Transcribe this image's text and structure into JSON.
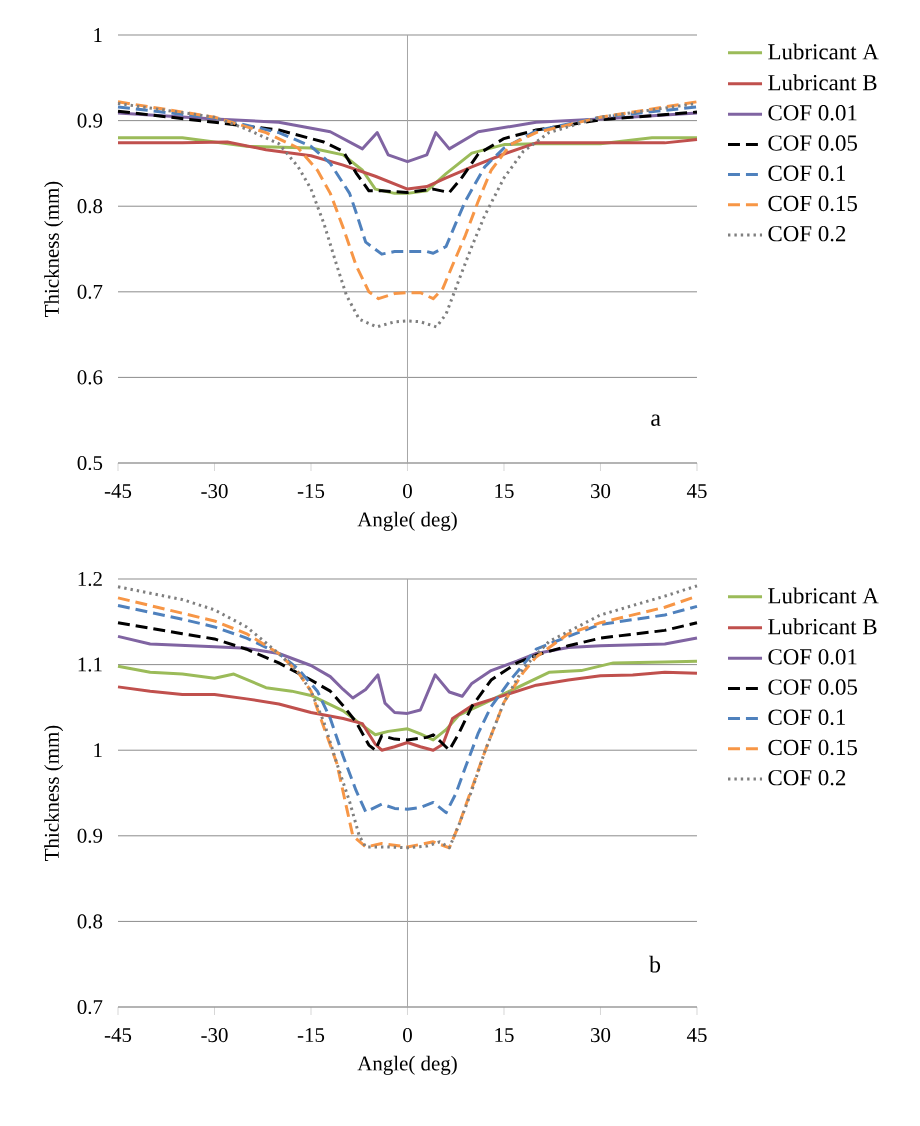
{
  "chart_data": [
    {
      "type": "line",
      "xlabel": "Angle( deg)",
      "ylabel": "Thickness (mm)",
      "annotations": [
        "a"
      ],
      "xlim": [
        -45,
        45
      ],
      "xticks": [
        -45,
        -30,
        -15,
        0,
        15,
        30,
        45
      ],
      "ylim": [
        0.5,
        1
      ],
      "yticks": [
        0.5,
        0.6,
        0.7,
        0.8,
        0.9,
        1
      ],
      "grid": "y",
      "legend": "right",
      "ref_lines": [
        {
          "axis": "x",
          "value": 0,
          "color": "#a6a6a6"
        }
      ],
      "series": [
        {
          "name": "Lubricant A",
          "color": "#9bbb59",
          "line_style": "solid",
          "x": [
            -45,
            -35,
            -25,
            -15,
            -10,
            -7,
            -5,
            -2,
            0,
            3,
            6,
            8,
            10,
            15,
            20,
            30,
            38,
            45
          ],
          "values": [
            0.88,
            0.88,
            0.87,
            0.868,
            0.86,
            0.842,
            0.82,
            0.815,
            0.815,
            0.818,
            0.838,
            0.85,
            0.862,
            0.872,
            0.873,
            0.873,
            0.88,
            0.88
          ]
        },
        {
          "name": "Lubricant B",
          "color": "#c0504d",
          "line_style": "solid",
          "x": [
            -45,
            -35,
            -28,
            -22,
            -15,
            -10,
            -5,
            0,
            3,
            6,
            10,
            15,
            20,
            30,
            40,
            45
          ],
          "values": [
            0.874,
            0.874,
            0.875,
            0.866,
            0.859,
            0.848,
            0.835,
            0.82,
            0.823,
            0.833,
            0.846,
            0.861,
            0.874,
            0.874,
            0.874,
            0.878
          ]
        },
        {
          "name": "COF 0.01",
          "color": "#8064a2",
          "line_style": "solid",
          "x": [
            -45,
            -30,
            -20,
            -12,
            -7,
            -4.7,
            -3,
            0,
            3,
            4.4,
            6.5,
            11,
            20,
            30,
            45
          ],
          "values": [
            0.909,
            0.902,
            0.898,
            0.887,
            0.867,
            0.886,
            0.86,
            0.852,
            0.86,
            0.886,
            0.867,
            0.887,
            0.898,
            0.902,
            0.909
          ]
        },
        {
          "name": "COF 0.05",
          "color": "#000000",
          "line_style": "dashed",
          "x": [
            -45,
            -30,
            -20,
            -13,
            -10,
            -8,
            -6,
            -4,
            0,
            4,
            6.5,
            8.5,
            11,
            15,
            20,
            30,
            45
          ],
          "values": [
            0.911,
            0.898,
            0.889,
            0.875,
            0.864,
            0.839,
            0.818,
            0.818,
            0.816,
            0.82,
            0.816,
            0.834,
            0.861,
            0.879,
            0.889,
            0.901,
            0.91
          ]
        },
        {
          "name": "COF 0.1",
          "color": "#4f81bd",
          "line_style": "dashed",
          "x": [
            -45,
            -30,
            -20,
            -15,
            -12,
            -9,
            -8,
            -6.5,
            -4,
            -2,
            0,
            3,
            4,
            6,
            7.5,
            9,
            12,
            15,
            20,
            30,
            45
          ],
          "values": [
            0.916,
            0.903,
            0.886,
            0.87,
            0.85,
            0.815,
            0.793,
            0.758,
            0.744,
            0.747,
            0.747,
            0.747,
            0.745,
            0.753,
            0.78,
            0.806,
            0.846,
            0.868,
            0.888,
            0.904,
            0.916
          ]
        },
        {
          "name": "COF 0.15",
          "color": "#f79646",
          "line_style": "dashed",
          "x": [
            -45,
            -30,
            -22,
            -17,
            -14,
            -12,
            -10,
            -8,
            -6,
            -4.5,
            -2,
            0,
            2,
            4,
            5.5,
            7,
            9,
            11,
            13,
            16,
            20,
            30,
            45
          ],
          "values": [
            0.922,
            0.904,
            0.886,
            0.868,
            0.842,
            0.815,
            0.775,
            0.731,
            0.7,
            0.692,
            0.698,
            0.699,
            0.699,
            0.692,
            0.704,
            0.731,
            0.766,
            0.806,
            0.842,
            0.872,
            0.886,
            0.904,
            0.922
          ]
        },
        {
          "name": "COF 0.2",
          "color": "#7f7f7f",
          "line_style": "dotted",
          "x": [
            -45,
            -30,
            -25,
            -20,
            -17,
            -15,
            -13,
            -11,
            -9.5,
            -7.5,
            -4.8,
            -2,
            0,
            2,
            4.5,
            6,
            8,
            10,
            12,
            15,
            18,
            22,
            30,
            45
          ],
          "values": [
            0.92,
            0.904,
            0.89,
            0.873,
            0.846,
            0.82,
            0.78,
            0.731,
            0.696,
            0.668,
            0.659,
            0.665,
            0.666,
            0.665,
            0.659,
            0.674,
            0.714,
            0.753,
            0.789,
            0.833,
            0.864,
            0.886,
            0.904,
            0.92
          ]
        }
      ]
    },
    {
      "type": "line",
      "xlabel": "Angle( deg)",
      "ylabel": "Thickness (mm)",
      "annotations": [
        "b"
      ],
      "xlim": [
        -45,
        45
      ],
      "xticks": [
        -45,
        -30,
        -15,
        0,
        15,
        30,
        45
      ],
      "ylim": [
        0.7,
        1.2
      ],
      "yticks": [
        0.7,
        0.8,
        0.9,
        1,
        1.1,
        1.2
      ],
      "grid": "y",
      "legend": "right",
      "ref_lines": [
        {
          "axis": "x",
          "value": 0,
          "color": "#a6a6a6"
        }
      ],
      "series": [
        {
          "name": "Lubricant A",
          "color": "#9bbb59",
          "line_style": "solid",
          "x": [
            -45,
            -40,
            -35,
            -30,
            -27,
            -22,
            -18,
            -15,
            -10,
            -7,
            -5,
            -3,
            0,
            2,
            4,
            6,
            8,
            12,
            17,
            22,
            27,
            32,
            40,
            45
          ],
          "values": [
            1.098,
            1.091,
            1.089,
            1.084,
            1.089,
            1.073,
            1.069,
            1.064,
            1.046,
            1.029,
            1.018,
            1.022,
            1.025,
            1.019,
            1.012,
            1.024,
            1.041,
            1.055,
            1.073,
            1.091,
            1.093,
            1.102,
            1.103,
            1.104
          ]
        },
        {
          "name": "Lubricant B",
          "color": "#c0504d",
          "line_style": "solid",
          "x": [
            -45,
            -40,
            -35,
            -30,
            -25,
            -20,
            -15,
            -10,
            -7,
            -5,
            -4,
            -2,
            0,
            2,
            4,
            5.5,
            7,
            10,
            15,
            20,
            25,
            30,
            35,
            40,
            45
          ],
          "values": [
            1.074,
            1.069,
            1.065,
            1.065,
            1.06,
            1.054,
            1.044,
            1.037,
            1.031,
            1.007,
            1,
            1.004,
            1.009,
            1.004,
            1,
            1.007,
            1.037,
            1.052,
            1.064,
            1.076,
            1.082,
            1.087,
            1.088,
            1.091,
            1.09
          ]
        },
        {
          "name": "COF 0.01",
          "color": "#8064a2",
          "line_style": "solid",
          "x": [
            -45,
            -40,
            -30,
            -25,
            -20,
            -15,
            -12,
            -10,
            -8.5,
            -6.5,
            -4.6,
            -3.5,
            -2,
            0,
            2,
            4.3,
            6.5,
            8.5,
            10,
            13,
            17,
            20,
            25,
            30,
            40,
            45
          ],
          "values": [
            1.133,
            1.124,
            1.121,
            1.119,
            1.113,
            1.099,
            1.086,
            1.071,
            1.061,
            1.071,
            1.088,
            1.055,
            1.044,
            1.043,
            1.047,
            1.088,
            1.068,
            1.063,
            1.078,
            1.093,
            1.104,
            1.113,
            1.12,
            1.122,
            1.124,
            1.131
          ]
        },
        {
          "name": "COF 0.05",
          "color": "#000000",
          "line_style": "dashed",
          "x": [
            -45,
            -35,
            -30,
            -25,
            -20,
            -15,
            -12,
            -10,
            -8,
            -6,
            -5,
            -4,
            -2,
            0,
            3,
            4,
            5,
            6.5,
            8,
            10,
            13,
            17,
            20,
            25,
            30,
            40,
            45
          ],
          "values": [
            1.149,
            1.136,
            1.13,
            1.118,
            1.102,
            1.082,
            1.069,
            1.052,
            1.033,
            1.006,
            1,
            1.017,
            1.013,
            1.012,
            1.015,
            1.018,
            1.011,
            1,
            1.02,
            1.051,
            1.082,
            1.102,
            1.111,
            1.122,
            1.131,
            1.14,
            1.149
          ]
        },
        {
          "name": "COF 0.1",
          "color": "#4f81bd",
          "line_style": "dashed",
          "x": [
            -45,
            -35,
            -30,
            -25,
            -20,
            -17,
            -14,
            -12,
            -10,
            -8,
            -6.5,
            -4,
            -2,
            0,
            2,
            4,
            6,
            7.5,
            9,
            11,
            13,
            16,
            20,
            25,
            30,
            40,
            45
          ],
          "values": [
            1.169,
            1.153,
            1.144,
            1.131,
            1.113,
            1.095,
            1.069,
            1.037,
            0.993,
            0.953,
            0.928,
            0.937,
            0.932,
            0.931,
            0.933,
            0.939,
            0.927,
            0.949,
            0.98,
            1.02,
            1.051,
            1.082,
            1.118,
            1.133,
            1.147,
            1.158,
            1.168
          ]
        },
        {
          "name": "COF 0.15",
          "color": "#f79646",
          "line_style": "dashed",
          "x": [
            -45,
            -30,
            -25,
            -20,
            -17,
            -15,
            -11,
            -8.5,
            -6.5,
            -4,
            0,
            4,
            6.5,
            8,
            12,
            15,
            18,
            20,
            25,
            30,
            40,
            45
          ],
          "values": [
            1.178,
            1.151,
            1.136,
            1.113,
            1.091,
            1.069,
            0.985,
            0.9,
            0.887,
            0.891,
            0.887,
            0.893,
            0.886,
            0.913,
            0.998,
            1.056,
            1.091,
            1.109,
            1.136,
            1.149,
            1.167,
            1.18
          ]
        },
        {
          "name": "COF 0.2",
          "color": "#7f7f7f",
          "line_style": "dotted",
          "x": [
            -45,
            -35,
            -30,
            -25,
            -20,
            -17,
            -15,
            -13,
            -11,
            -9,
            -7.5,
            -6.5,
            -3,
            0,
            3,
            5,
            6.5,
            8,
            10,
            12,
            15,
            18,
            22,
            30,
            40,
            45
          ],
          "values": [
            1.191,
            1.176,
            1.164,
            1.144,
            1.113,
            1.091,
            1.069,
            1.033,
            0.985,
            0.94,
            0.9,
            0.887,
            0.887,
            0.886,
            0.888,
            0.893,
            0.886,
            0.913,
            0.953,
            0.998,
            1.056,
            1.096,
            1.127,
            1.158,
            1.18,
            1.192
          ]
        }
      ]
    }
  ]
}
